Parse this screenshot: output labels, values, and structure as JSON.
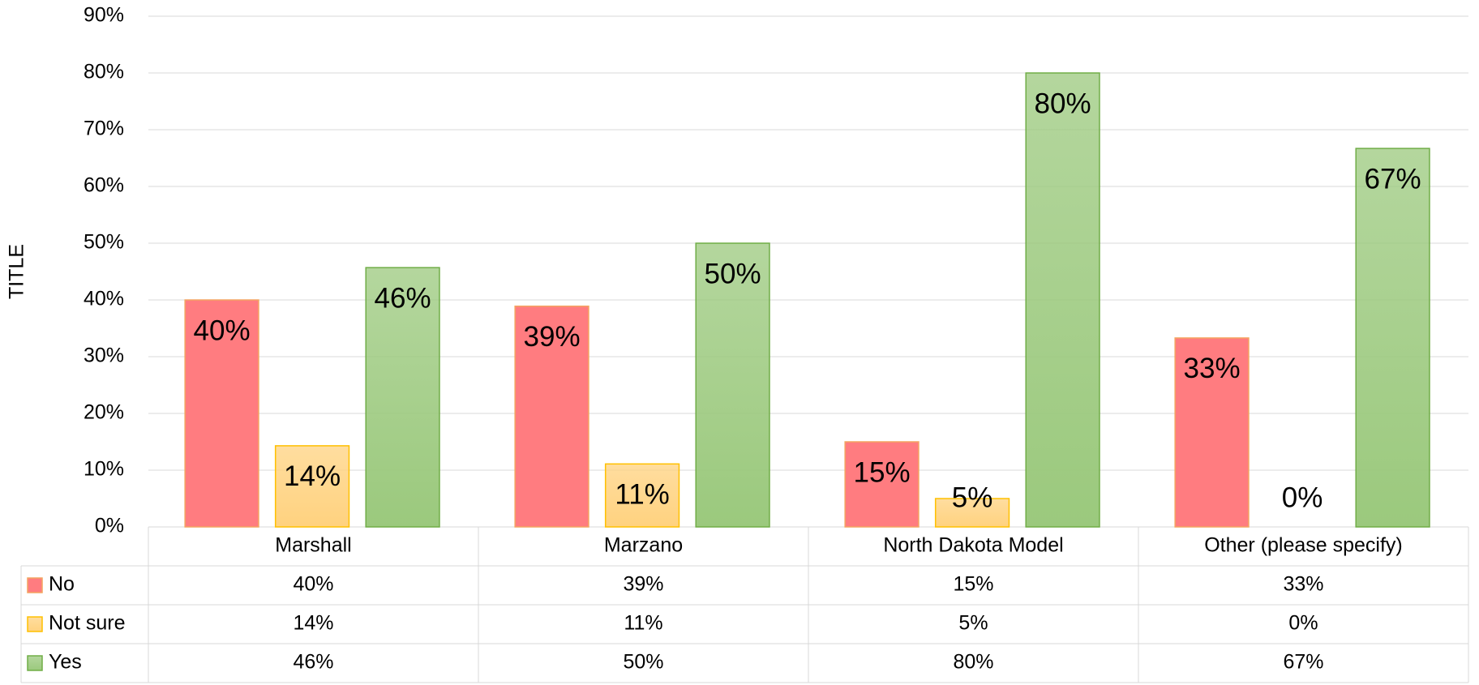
{
  "chart_data": {
    "type": "bar",
    "y_axis_label": "TITLE",
    "categories": [
      "Marshall",
      "Marzano",
      "North Dakota Model",
      "Other (please specify)"
    ],
    "series": [
      {
        "name": "No",
        "color": "#ff7c80",
        "stroke": "#f4a460",
        "values": [
          40,
          38.9,
          15,
          33.3
        ],
        "value_labels": [
          "40%",
          "39%",
          "15%",
          "33%"
        ]
      },
      {
        "name": "Not sure",
        "color": "#ffd27f",
        "stroke": "#ffc000",
        "values": [
          14.3,
          11.1,
          5,
          0
        ],
        "value_labels": [
          "14%",
          "11%",
          "5%",
          "0%"
        ]
      },
      {
        "name": "Yes",
        "color": "#9bc97d",
        "stroke": "#70ad47",
        "values": [
          45.7,
          50,
          80,
          66.7
        ],
        "value_labels": [
          "46%",
          "50%",
          "80%",
          "67%"
        ]
      }
    ],
    "ylim": [
      0,
      90
    ],
    "yticks": [
      {
        "value": 0,
        "label": "0%"
      },
      {
        "value": 10,
        "label": "10%"
      },
      {
        "value": 20,
        "label": "20%"
      },
      {
        "value": 30,
        "label": "30%"
      },
      {
        "value": 40,
        "label": "40%"
      },
      {
        "value": 50,
        "label": "50%"
      },
      {
        "value": 60,
        "label": "60%"
      },
      {
        "value": 70,
        "label": "70%"
      },
      {
        "value": 80,
        "label": "80%"
      },
      {
        "value": 90,
        "label": "90%"
      }
    ],
    "grid": true,
    "data_table": true
  }
}
